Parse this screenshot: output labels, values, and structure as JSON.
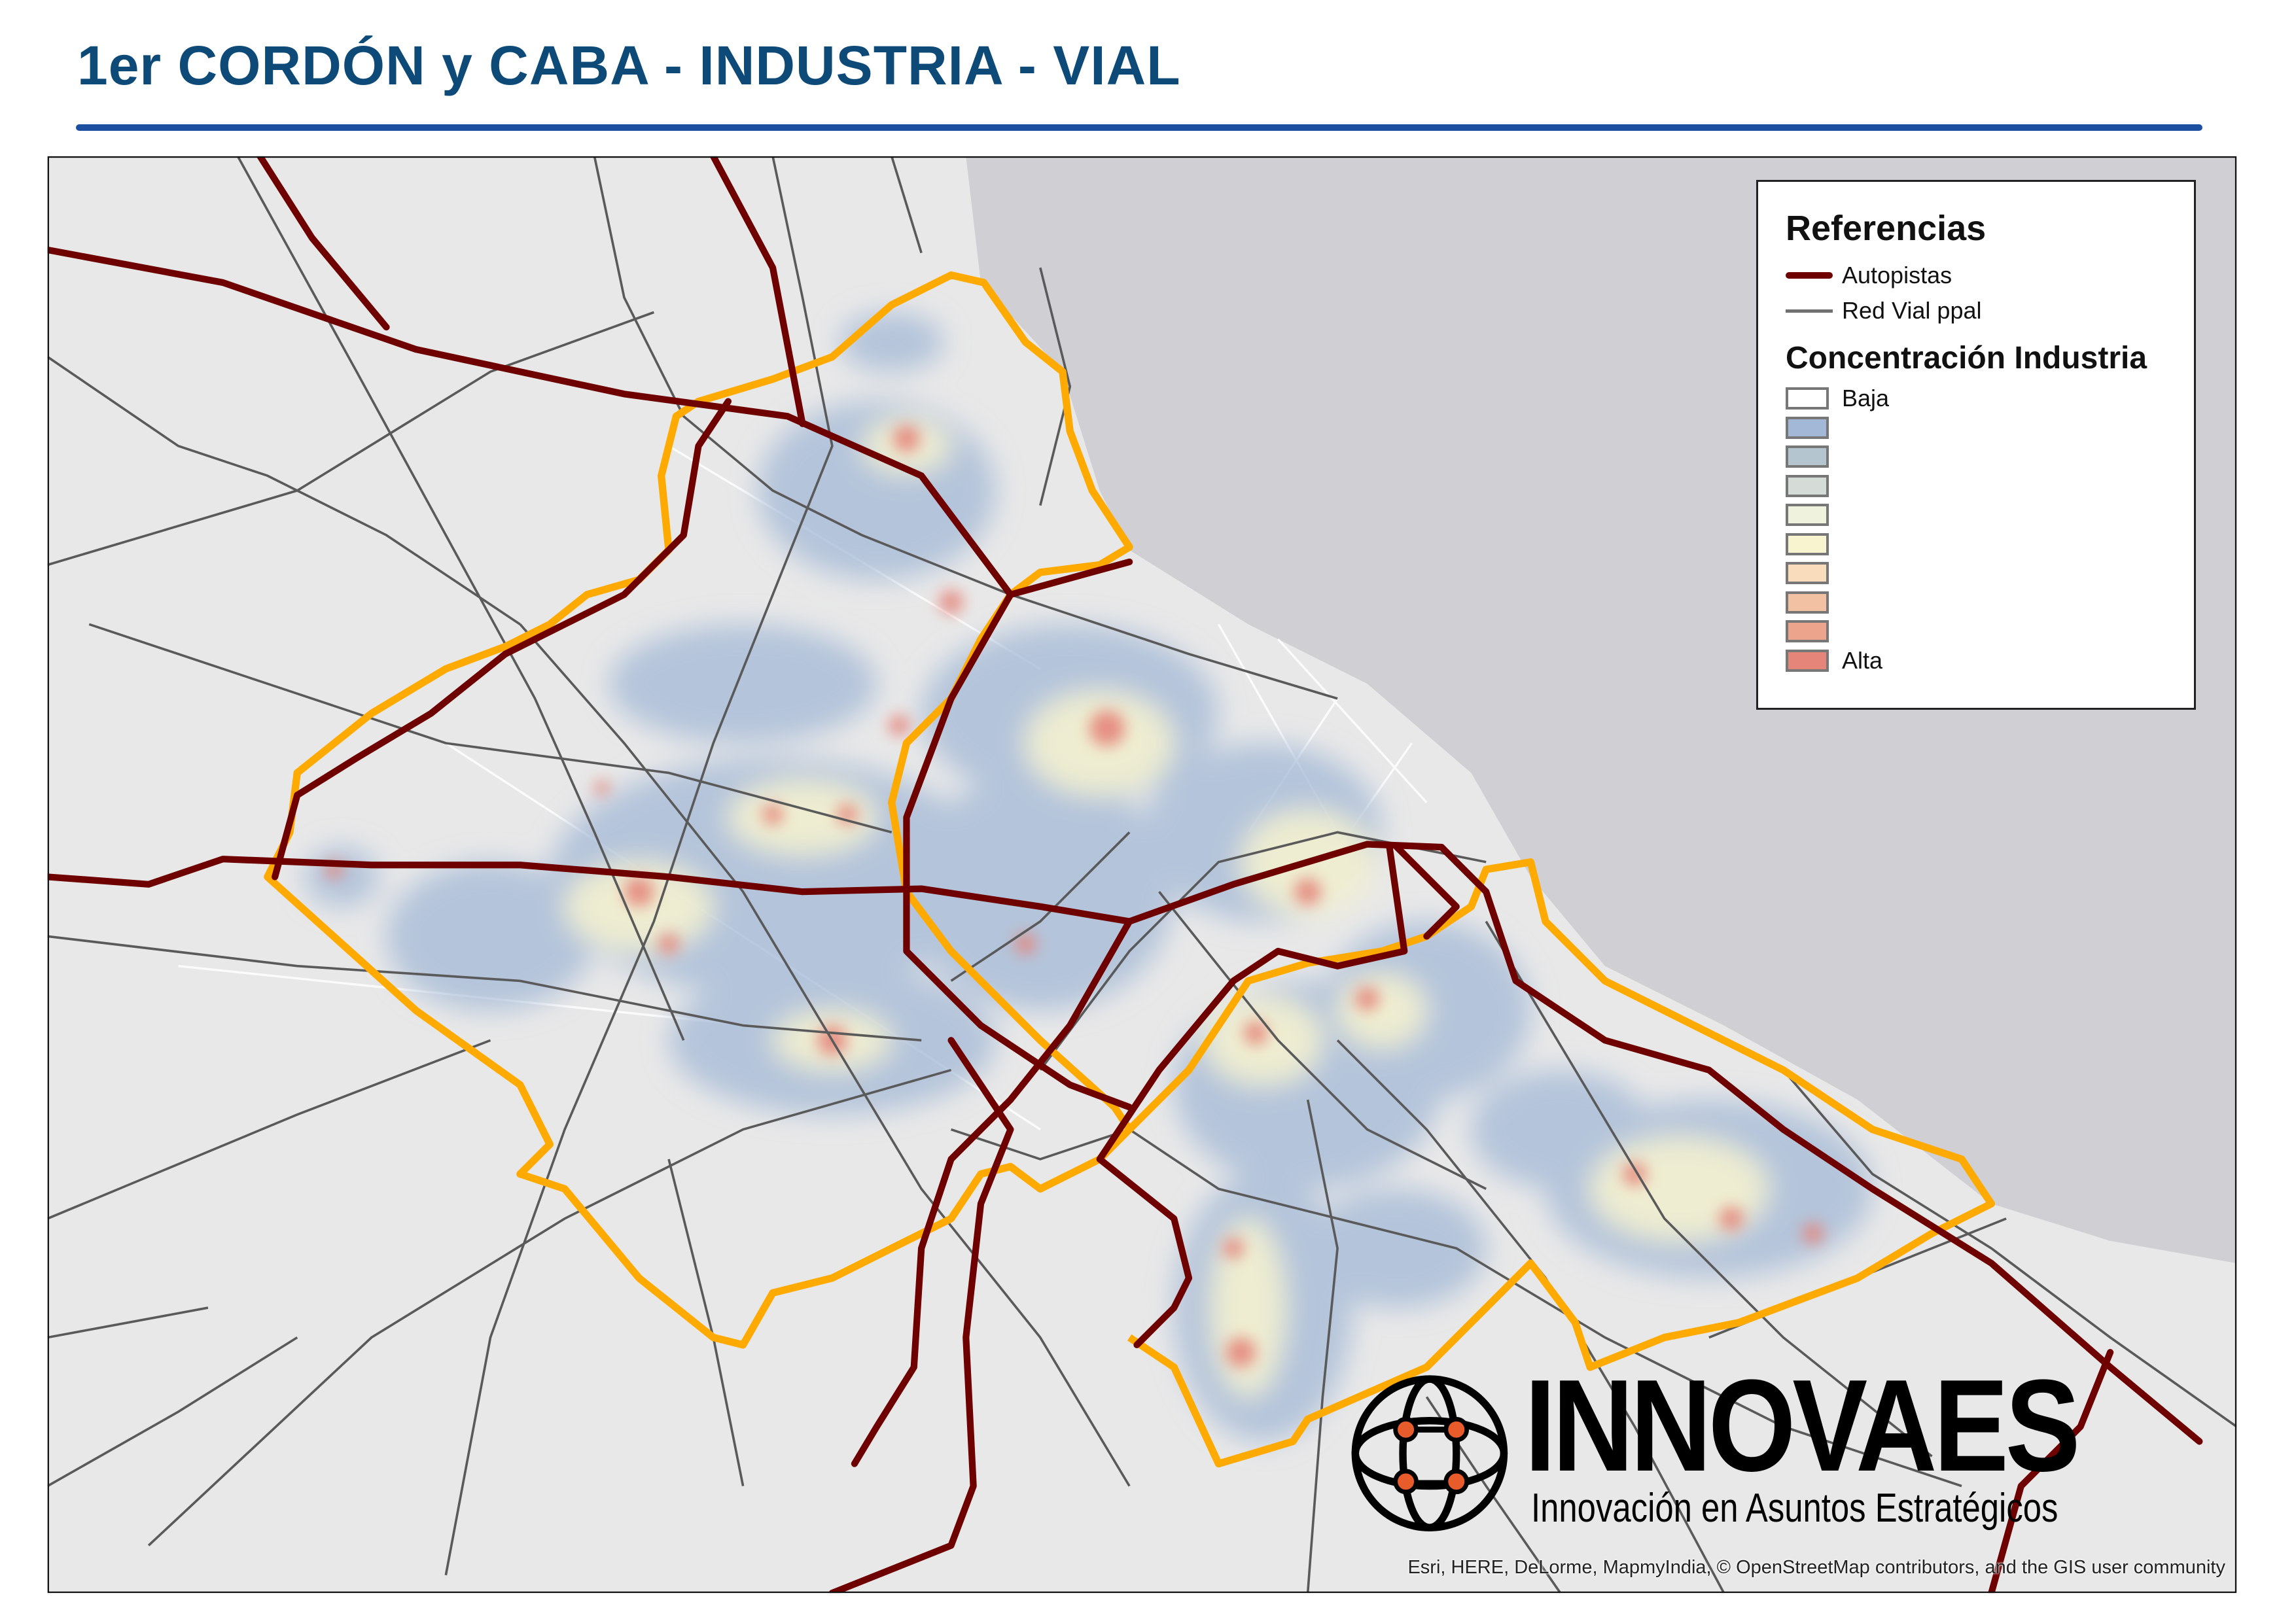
{
  "title": "1er CORDÓN y CABA - INDUSTRIA - VIAL",
  "legend": {
    "title": "Referencias",
    "lines": [
      {
        "label": "Autopistas",
        "color": "#6e0000"
      },
      {
        "label": "Red Vial ppal",
        "color": "#707070"
      }
    ],
    "density_title": "Concentración Industria",
    "density_low_label": "Baja",
    "density_high_label": "Alta",
    "density_colors": [
      "#ffffff",
      "#a3b8d6",
      "#b5c5cf",
      "#d5dbd6",
      "#eff2dc",
      "#f8f4cf",
      "#f9dcbc",
      "#f2c1a4",
      "#eca48c",
      "#e5857a"
    ]
  },
  "colors": {
    "boundary": "#ffaa00",
    "sea": "#cfcfd4",
    "land": "#e8e8e8"
  },
  "logo": {
    "name": "INNOVAES",
    "tagline": "Innovación en Asuntos Estratégicos",
    "accent": "#e85c2c"
  },
  "attribution": "Esri, HERE, DeLorme, MapmyIndia, © OpenStreetMap contributors, and the GIS user community"
}
